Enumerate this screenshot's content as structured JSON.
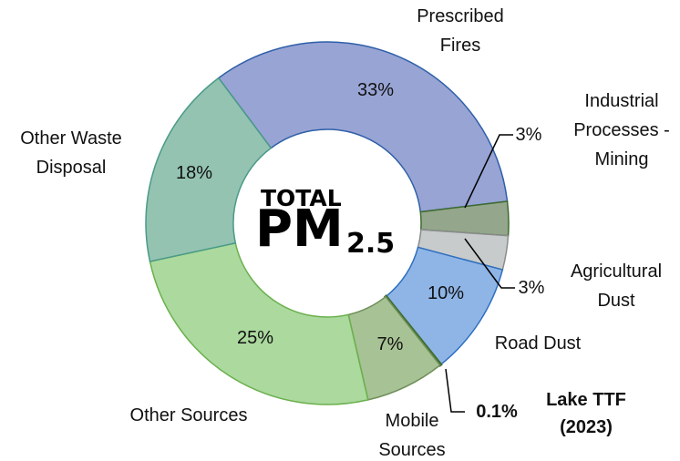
{
  "chart_data": {
    "type": "pie",
    "donut": true,
    "center_text": {
      "top": "TOTAL",
      "main": "PM",
      "sub": "2.5"
    },
    "categories": [
      "Prescribed Fires",
      "Industrial Processes - Mining",
      "Agricultural Dust",
      "Road Dust",
      "Lake TTF (2023)",
      "Mobile Sources",
      "Other Sources",
      "Other Waste Disposal"
    ],
    "values": [
      33,
      3,
      3,
      10,
      0.1,
      7,
      25,
      18
    ],
    "value_labels": [
      "33%",
      "3%",
      "3%",
      "10%",
      "0.1%",
      "7%",
      "25%",
      "18%"
    ],
    "colors": [
      "#98a4d4",
      "#94a68b",
      "#c8cbcc",
      "#8fb5e6",
      "#3e6e30",
      "#a7c294",
      "#abd99e",
      "#94c3b1"
    ]
  }
}
